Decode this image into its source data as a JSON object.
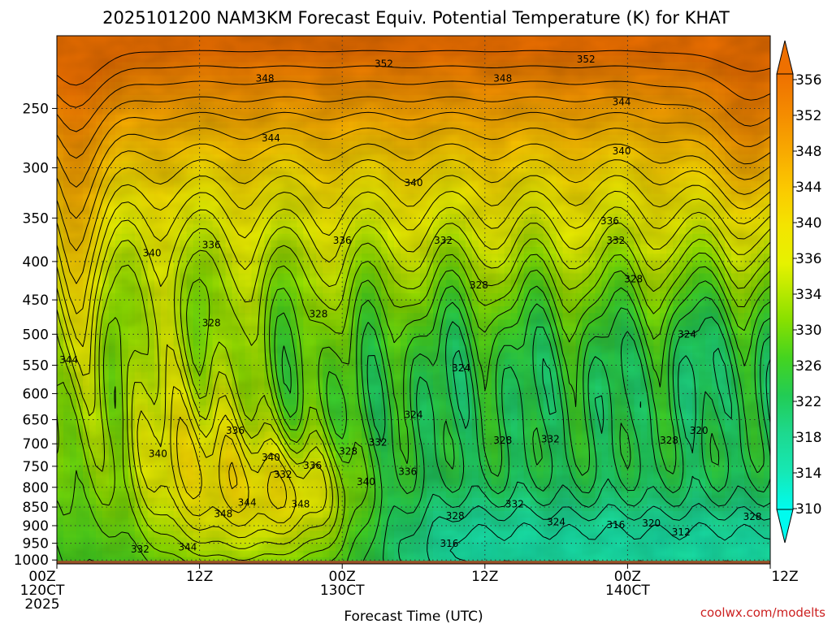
{
  "chart_data": {
    "type": "heatmap",
    "title": "2025101200 NAM3KM Forecast Equiv. Potential Temperature (K) for KHAT",
    "xlabel": "Forecast Time (UTC)",
    "ylabel": "",
    "credit": "coolwx.com/modelts",
    "x_ticks": [
      {
        "hour": 0,
        "lines": [
          "00Z",
          "120CT",
          "2025"
        ]
      },
      {
        "hour": 12,
        "lines": [
          "12Z"
        ]
      },
      {
        "hour": 24,
        "lines": [
          "00Z",
          "130CT"
        ]
      },
      {
        "hour": 36,
        "lines": [
          "12Z"
        ]
      },
      {
        "hour": 48,
        "lines": [
          "00Z",
          "140CT"
        ]
      },
      {
        "hour": 60,
        "lines": [
          "12Z"
        ]
      }
    ],
    "xlim": [
      0,
      60
    ],
    "y_ticks": [
      250,
      300,
      350,
      400,
      450,
      500,
      550,
      600,
      650,
      700,
      750,
      800,
      850,
      900,
      950,
      1000
    ],
    "ylim": [
      200,
      1012
    ],
    "yscale": "log-pressure",
    "colorbar": {
      "ticks": [
        356,
        352,
        348,
        344,
        340,
        336,
        334,
        330,
        326,
        322,
        318,
        314,
        310
      ],
      "stops": [
        {
          "k": 310,
          "color": "#00fbee"
        },
        {
          "k": 314,
          "color": "#16e8b4"
        },
        {
          "k": 318,
          "color": "#1dd98f"
        },
        {
          "k": 322,
          "color": "#22cc55"
        },
        {
          "k": 326,
          "color": "#44d420"
        },
        {
          "k": 330,
          "color": "#88e000"
        },
        {
          "k": 334,
          "color": "#c8ec00"
        },
        {
          "k": 336,
          "color": "#e6f200"
        },
        {
          "k": 340,
          "color": "#f4e400"
        },
        {
          "k": 344,
          "color": "#fbc800"
        },
        {
          "k": 348,
          "color": "#f8a800"
        },
        {
          "k": 352,
          "color": "#f48a00"
        },
        {
          "k": 356,
          "color": "#ee7000"
        }
      ]
    },
    "ground_color": "#9a5028",
    "contour_labels": [
      {
        "text": "352",
        "hour": 27.5,
        "p": 218
      },
      {
        "text": "352",
        "hour": 44.5,
        "p": 215
      },
      {
        "text": "348",
        "hour": 17.5,
        "p": 228
      },
      {
        "text": "348",
        "hour": 37.5,
        "p": 228
      },
      {
        "text": "344",
        "hour": 47.5,
        "p": 245
      },
      {
        "text": "344",
        "hour": 18,
        "p": 274
      },
      {
        "text": "340",
        "hour": 47.5,
        "p": 285
      },
      {
        "text": "340",
        "hour": 30,
        "p": 314
      },
      {
        "text": "336",
        "hour": 46.5,
        "p": 353
      },
      {
        "text": "336",
        "hour": 13,
        "p": 380
      },
      {
        "text": "336",
        "hour": 24,
        "p": 375
      },
      {
        "text": "332",
        "hour": 32.5,
        "p": 375
      },
      {
        "text": "332",
        "hour": 47,
        "p": 375
      },
      {
        "text": "340",
        "hour": 8,
        "p": 390
      },
      {
        "text": "328",
        "hour": 48.5,
        "p": 422
      },
      {
        "text": "328",
        "hour": 35.5,
        "p": 430
      },
      {
        "text": "328",
        "hour": 22,
        "p": 470
      },
      {
        "text": "328",
        "hour": 13,
        "p": 483
      },
      {
        "text": "324",
        "hour": 53,
        "p": 500
      },
      {
        "text": "344",
        "hour": 1,
        "p": 541
      },
      {
        "text": "324",
        "hour": 34,
        "p": 555
      },
      {
        "text": "324",
        "hour": 30,
        "p": 640
      },
      {
        "text": "336",
        "hour": 15,
        "p": 672
      },
      {
        "text": "320",
        "hour": 54,
        "p": 672
      },
      {
        "text": "328",
        "hour": 37.5,
        "p": 693
      },
      {
        "text": "332",
        "hour": 41.5,
        "p": 690
      },
      {
        "text": "328",
        "hour": 51.5,
        "p": 693
      },
      {
        "text": "332",
        "hour": 27,
        "p": 697
      },
      {
        "text": "328",
        "hour": 24.5,
        "p": 716
      },
      {
        "text": "340",
        "hour": 8.5,
        "p": 722
      },
      {
        "text": "340",
        "hour": 18,
        "p": 730
      },
      {
        "text": "336",
        "hour": 21.5,
        "p": 748
      },
      {
        "text": "336",
        "hour": 29.5,
        "p": 762
      },
      {
        "text": "332",
        "hour": 19,
        "p": 769
      },
      {
        "text": "340",
        "hour": 26,
        "p": 787
      },
      {
        "text": "344",
        "hour": 16,
        "p": 838
      },
      {
        "text": "348",
        "hour": 20.5,
        "p": 842
      },
      {
        "text": "332",
        "hour": 38.5,
        "p": 842
      },
      {
        "text": "348",
        "hour": 14,
        "p": 868
      },
      {
        "text": "328",
        "hour": 33.5,
        "p": 873
      },
      {
        "text": "328",
        "hour": 58.5,
        "p": 876
      },
      {
        "text": "324",
        "hour": 42,
        "p": 890
      },
      {
        "text": "316",
        "hour": 47,
        "p": 898
      },
      {
        "text": "320",
        "hour": 50,
        "p": 893
      },
      {
        "text": "312",
        "hour": 52.5,
        "p": 918
      },
      {
        "text": "316",
        "hour": 33,
        "p": 951
      },
      {
        "text": "344",
        "hour": 11,
        "p": 962
      },
      {
        "text": "332",
        "hour": 7,
        "p": 968
      }
    ]
  }
}
